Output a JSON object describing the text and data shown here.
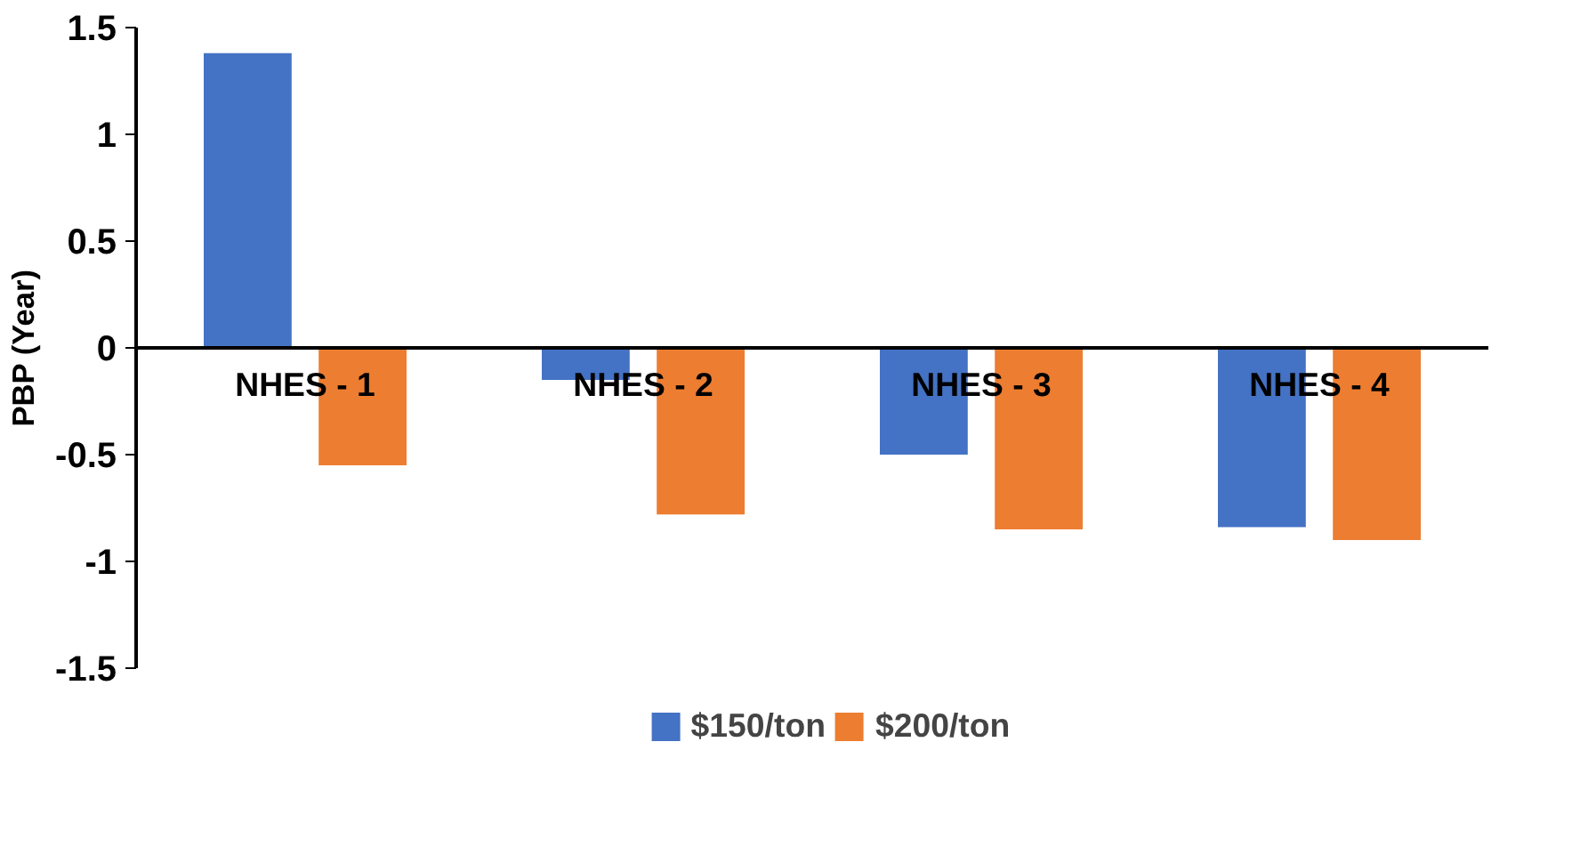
{
  "chart_data": {
    "type": "bar",
    "ylabel": "PBP (Year)",
    "categories": [
      "NHES - 1",
      "NHES - 2",
      "NHES - 3",
      "NHES - 4"
    ],
    "series": [
      {
        "name": "$150/ton",
        "color": "#4472c4",
        "values": [
          1.38,
          -0.15,
          -0.5,
          -0.84
        ]
      },
      {
        "name": "$200/ton",
        "color": "#ed7d31",
        "values": [
          -0.55,
          -0.78,
          -0.85,
          -0.9
        ]
      }
    ],
    "ylim": [
      -1.5,
      1.5
    ],
    "yticks": [
      -1.5,
      -1,
      -0.5,
      0,
      0.5,
      1,
      1.5
    ],
    "grid": false,
    "legend": "bottom"
  }
}
